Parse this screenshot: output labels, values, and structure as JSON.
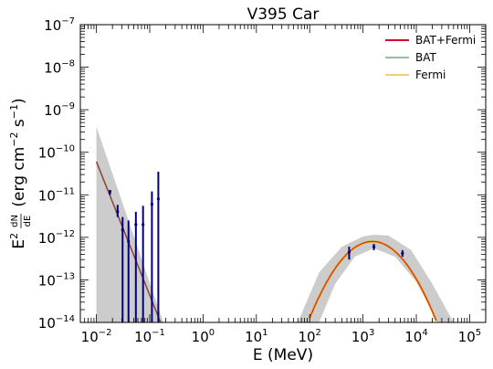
{
  "chart_data": {
    "type": "line",
    "title": "V395 Car",
    "xlabel": "E (MeV)",
    "ylabel_parts": [
      "E",
      "2",
      "dN",
      "dE",
      "(erg cm",
      "−2",
      " s",
      "−1",
      ")"
    ],
    "xscale": "log",
    "yscale": "log",
    "xlim": [
      0.005,
      200000
    ],
    "ylim": [
      1e-14,
      1e-07
    ],
    "x_ticks": [
      {
        "value": 0.01,
        "base": "10",
        "exp": "−2"
      },
      {
        "value": 0.1,
        "base": "10",
        "exp": "−1"
      },
      {
        "value": 1,
        "base": "10",
        "exp": "0"
      },
      {
        "value": 10,
        "base": "10",
        "exp": "1"
      },
      {
        "value": 100,
        "base": "10",
        "exp": "2"
      },
      {
        "value": 1000,
        "base": "10",
        "exp": "3"
      },
      {
        "value": 10000,
        "base": "10",
        "exp": "4"
      },
      {
        "value": 100000,
        "base": "10",
        "exp": "5"
      }
    ],
    "y_ticks": [
      {
        "value": 1e-14,
        "base": "10",
        "exp": "−14"
      },
      {
        "value": 1e-13,
        "base": "10",
        "exp": "−13"
      },
      {
        "value": 1e-12,
        "base": "10",
        "exp": "−12"
      },
      {
        "value": 1e-11,
        "base": "10",
        "exp": "−11"
      },
      {
        "value": 1e-10,
        "base": "10",
        "exp": "−10"
      },
      {
        "value": 1e-09,
        "base": "10",
        "exp": "−9"
      },
      {
        "value": 1e-08,
        "base": "10",
        "exp": "−8"
      },
      {
        "value": 1e-07,
        "base": "10",
        "exp": "−7"
      }
    ],
    "legend_position": "top-right",
    "series": [
      {
        "name": "BAT+Fermi",
        "color": "#d6002a",
        "style": "line"
      },
      {
        "name": "BAT",
        "color": "#2e7d32",
        "style": "line"
      },
      {
        "name": "Fermi",
        "color": "#e69a00",
        "style": "line"
      }
    ],
    "bat_line": {
      "x": [
        0.01,
        0.16
      ],
      "y": [
        6e-11,
        1e-14
      ]
    },
    "fermi_curve": {
      "peak_x": 1500,
      "peak_y": 8e-13,
      "log_sigma": 0.62,
      "x_range": [
        100,
        30000
      ]
    },
    "bat_band": {
      "upper": [
        [
          0.01,
          4e-10
        ],
        [
          0.18,
          1e-14
        ]
      ],
      "lower": [
        [
          0.01,
          1e-14
        ]
      ]
    },
    "fermi_band": {
      "upper": [
        [
          60,
          1e-14
        ],
        [
          150,
          1.5e-13
        ],
        [
          400,
          6e-13
        ],
        [
          1000,
          1.05e-12
        ],
        [
          1600,
          1.15e-12
        ],
        [
          3000,
          1.1e-12
        ],
        [
          8000,
          5e-13
        ],
        [
          20000,
          8e-14
        ],
        [
          50000,
          1e-14
        ]
      ],
      "lower": [
        [
          25000,
          1e-14
        ],
        [
          10000,
          9e-14
        ],
        [
          4000,
          3.5e-13
        ],
        [
          1600,
          5.5e-13
        ],
        [
          700,
          3.5e-13
        ],
        [
          300,
          8e-14
        ],
        [
          150,
          1e-14
        ]
      ]
    },
    "bat_points": [
      {
        "x": 0.018,
        "y": 1.2e-11,
        "ylo": 1e-11,
        "yhi": 1.3e-11
      },
      {
        "x": 0.025,
        "y": 4e-12,
        "ylo": 3e-12,
        "yhi": 5.8e-12
      },
      {
        "x": 0.031,
        "y": 1.5e-12,
        "ylo": 1e-14,
        "yhi": 3e-12
      },
      {
        "x": 0.04,
        "y": 8e-13,
        "ylo": 1e-14,
        "yhi": 2.5e-12
      },
      {
        "x": 0.055,
        "y": 2e-12,
        "ylo": 1e-14,
        "yhi": 4e-12
      },
      {
        "x": 0.075,
        "y": 2e-12,
        "ylo": 1e-14,
        "yhi": 5.5e-12
      },
      {
        "x": 0.11,
        "y": 6e-12,
        "ylo": 1e-14,
        "yhi": 1.2e-11
      },
      {
        "x": 0.145,
        "y": 8e-12,
        "ylo": 1e-14,
        "yhi": 3.5e-11
      }
    ],
    "fermi_points": [
      {
        "x": 550,
        "y": 4.5e-13,
        "ylo": 3e-13,
        "yhi": 6e-13
      },
      {
        "x": 1600,
        "y": 6e-13,
        "ylo": 5e-13,
        "yhi": 7e-13
      },
      {
        "x": 5500,
        "y": 4.2e-13,
        "ylo": 3.5e-13,
        "yhi": 5e-13
      }
    ]
  }
}
